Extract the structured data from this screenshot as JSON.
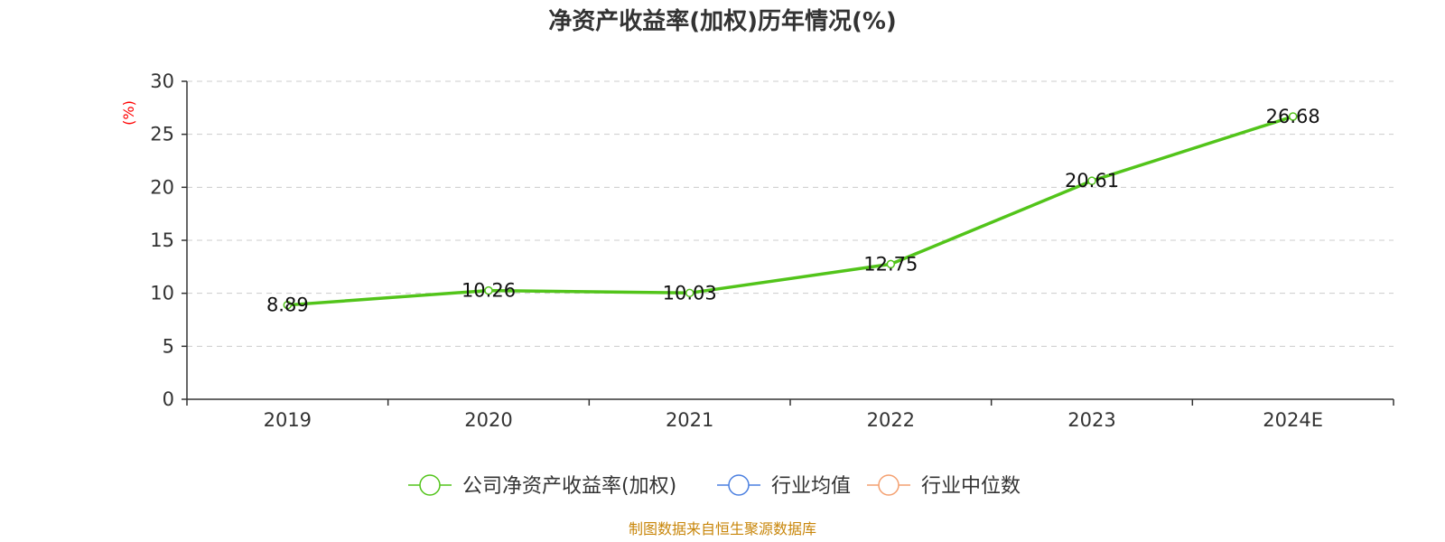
{
  "chart_data": {
    "type": "line",
    "title": "净资产收益率(加权)历年情况(%)",
    "ylabel": "(%)",
    "xlabel": "",
    "categories": [
      "2019",
      "2020",
      "2021",
      "2022",
      "2023",
      "2024E"
    ],
    "ylim": [
      0,
      30
    ],
    "yticks": [
      0,
      5,
      10,
      15,
      20,
      25,
      30
    ],
    "grid": true,
    "legend_position": "bottom",
    "series": [
      {
        "name": "公司净资产收益率(加权)",
        "values": [
          8.89,
          10.26,
          10.03,
          12.75,
          20.61,
          26.68
        ],
        "labels": [
          "8.89",
          "10.26",
          "10.03",
          "12.75",
          "20.61",
          "26.68"
        ],
        "color": "#52c41a"
      }
    ],
    "legend": [
      {
        "name": "公司净资产收益率(加权)",
        "color": "#52c41a"
      },
      {
        "name": "行业均值",
        "color": "#4a7fe0"
      },
      {
        "name": "行业中位数",
        "color": "#f4a070"
      }
    ],
    "source": "制图数据来自恒生聚源数据库"
  }
}
